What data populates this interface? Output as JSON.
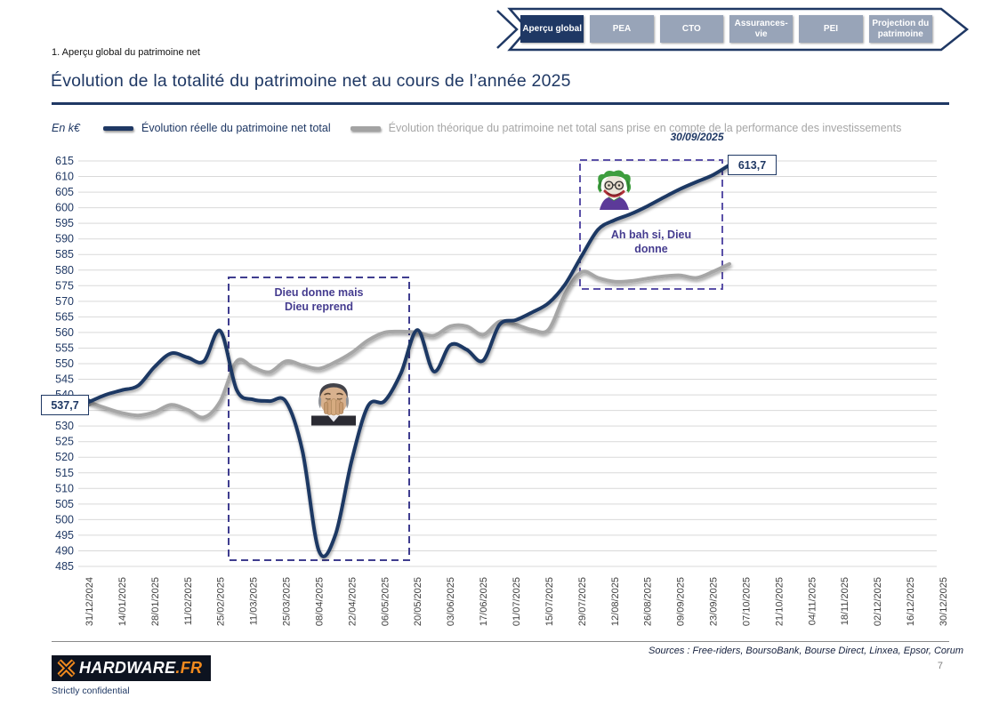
{
  "slide": {
    "section_label": "1. Aperçu global du patrimoine net",
    "title": "Évolution de la totalité du patrimoine net au cours de l’année 2025",
    "sources": "Sources : Free-riders, BoursoBank, Bourse Direct, Linxea, Epsor, Corum",
    "page_number": "7",
    "confidential": "Strictly confidential"
  },
  "nav": {
    "tabs": [
      {
        "label": "Aperçu global",
        "active": true
      },
      {
        "label": "PEA",
        "active": false
      },
      {
        "label": "CTO",
        "active": false
      },
      {
        "label": "Assurances-vie",
        "active": false
      },
      {
        "label": "PEI",
        "active": false
      },
      {
        "label": "Projection du patrimoine",
        "active": false
      }
    ]
  },
  "logo": {
    "brand": "HARDWARE",
    "tld": ".FR"
  },
  "chart_data": {
    "type": "line",
    "unit_label": "En k€",
    "ylim": [
      485,
      615
    ],
    "y_ticks": [
      485,
      490,
      495,
      500,
      505,
      510,
      515,
      520,
      525,
      530,
      535,
      540,
      545,
      550,
      555,
      560,
      565,
      570,
      575,
      580,
      585,
      590,
      595,
      600,
      605,
      610,
      615
    ],
    "x_tick_labels": [
      "31/12/2024",
      "14/01/2025",
      "28/01/2025",
      "11/02/2025",
      "25/02/2025",
      "11/03/2025",
      "25/03/2025",
      "08/04/2025",
      "22/04/2025",
      "06/05/2025",
      "20/05/2025",
      "03/06/2025",
      "17/06/2025",
      "01/07/2025",
      "15/07/2025",
      "29/07/2025",
      "12/08/2025",
      "26/08/2025",
      "09/09/2025",
      "23/09/2025",
      "07/10/2025",
      "21/10/2025",
      "04/11/2025",
      "18/11/2025",
      "02/12/2025",
      "16/12/2025",
      "30/12/2025"
    ],
    "sampling": "weekly points from 31/12/2024 to 30/09/2025",
    "grid": true,
    "legend_position": "top",
    "series": [
      {
        "name": "Évolution réelle du patrimoine net total",
        "color": "#1F3864",
        "values": [
          537.7,
          540,
          541.5,
          543,
          549,
          553.3,
          552,
          550.8,
          560.5,
          541.5,
          538.5,
          538,
          537.8,
          522,
          490,
          495,
          519,
          536.5,
          538,
          547,
          560.8,
          547.5,
          556,
          554.5,
          551,
          562.5,
          564,
          566.5,
          569.5,
          575.5,
          584.5,
          593,
          596,
          598,
          600.5,
          603.3,
          606,
          608.3,
          610.5,
          613.7
        ]
      },
      {
        "name": "Évolution théorique du patrimoine net total sans prise en compte de la performance des investissements",
        "color": "#A6A6A6",
        "values": [
          537.7,
          535.8,
          534.2,
          533.4,
          534.5,
          536.8,
          535.2,
          532.8,
          538,
          550.8,
          548.8,
          547.3,
          550.8,
          549.5,
          548.4,
          550.5,
          553.5,
          557.5,
          560,
          560.3,
          560,
          559,
          562,
          562,
          559.3,
          563.5,
          562.5,
          560.8,
          561,
          572.5,
          579.4,
          577.5,
          576.3,
          576.5,
          577.3,
          578,
          578.3,
          577.5,
          579.5,
          582
        ]
      }
    ],
    "annotations": {
      "start_value_label": "537,7",
      "end_value_label": "613,7",
      "end_date_label": "30/09/2025",
      "box1": {
        "line1": "Dieu donne mais",
        "line2": "Dieu reprend"
      },
      "box2": {
        "line1": "Ah bah si, Dieu",
        "line2": "donne"
      }
    }
  }
}
